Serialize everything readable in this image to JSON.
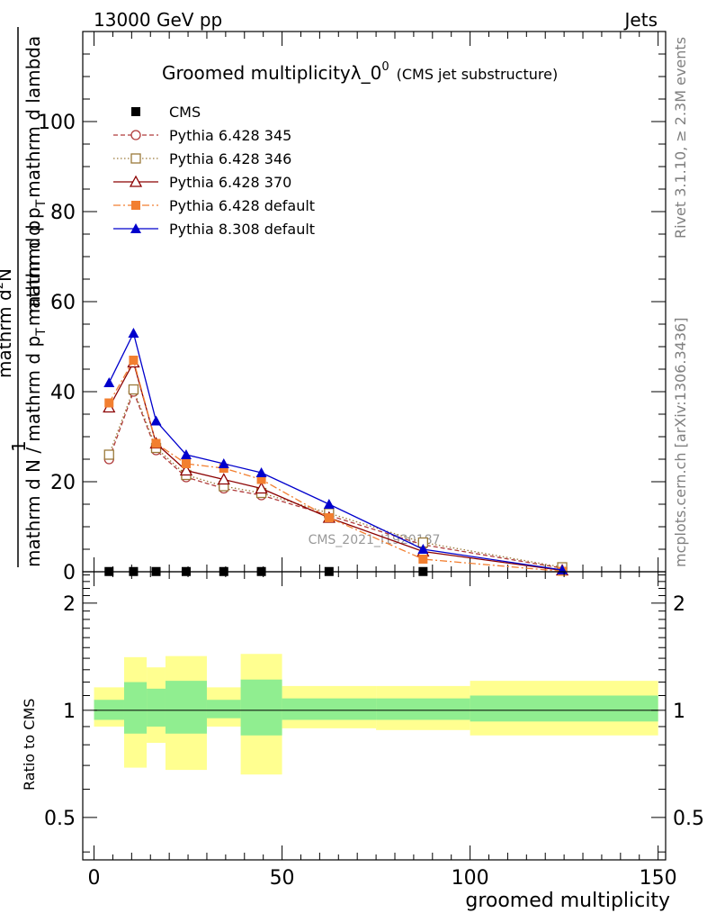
{
  "header": {
    "energy_label": "13000 GeV pp",
    "category_label": "Jets",
    "title_main": "Groomed multiplicityλ_0",
    "title_sup": "0",
    "title_sub": "(CMS jet substructure)",
    "watermark": "CMS_2021_I1920187",
    "side_top": "Rivet 3.1.10, ≥ 2.3M events",
    "side_bottom": "mcplots.cern.ch [arXiv:1306.3436]"
  },
  "chart_data": [
    {
      "type": "line",
      "panel": "main",
      "xlabel": "groomed multiplicity",
      "ylabel": {
        "prefix": "1",
        "denominator": "mathrm d N / mathrm d p",
        "denominator_sub": "T",
        "denominator_rest": "mathrm d p",
        "numerator": "mathrm d",
        "numerator_sup": "2",
        "numerator_rest": "N",
        "numerator2": "mathrm d p",
        "numerator2_sub": "T",
        "numerator2_rest": "mathrm d lambda"
      },
      "xlim": [
        -3,
        152
      ],
      "ylim": [
        0,
        120
      ],
      "xticks": [
        0,
        50,
        100,
        150
      ],
      "yticks": [
        20,
        40,
        60,
        80,
        100
      ],
      "ytick_labels": [
        "20",
        "40",
        "60",
        "80",
        "100"
      ],
      "y_zero_label": "0",
      "legend_position": "top-left",
      "series": [
        {
          "name": "CMS",
          "color": "#000000",
          "marker": "square-filled",
          "line": "none",
          "x": [
            4,
            10.5,
            16.5,
            24.5,
            34.5,
            44.5,
            62.5,
            87.5
          ],
          "y": [
            0.05,
            0.05,
            0.05,
            0.05,
            0.05,
            0.05,
            0.05,
            0.05
          ]
        },
        {
          "name": "Pythia 6.428 345",
          "color": "#b03a3a",
          "marker": "circle-open",
          "line": "dashed",
          "x": [
            4,
            10.5,
            16.5,
            24.5,
            34.5,
            44.5,
            62.5,
            87.5,
            124.5
          ],
          "y": [
            25,
            40,
            27,
            21,
            18.5,
            17,
            12.5,
            6,
            0.8
          ]
        },
        {
          "name": "Pythia 6.428 346",
          "color": "#9a7a3a",
          "marker": "square-open",
          "line": "dotted",
          "x": [
            4,
            10.5,
            16.5,
            24.5,
            34.5,
            44.5,
            62.5,
            87.5,
            124.5
          ],
          "y": [
            26,
            40.5,
            27.5,
            21.5,
            19,
            17.5,
            13,
            6.5,
            1
          ]
        },
        {
          "name": "Pythia 6.428 370",
          "color": "#8b0000",
          "marker": "triangle-open",
          "line": "solid",
          "x": [
            4,
            10.5,
            16.5,
            24.5,
            34.5,
            44.5,
            62.5,
            87.5,
            124.5
          ],
          "y": [
            36.5,
            46.5,
            28.5,
            22.5,
            20.5,
            18.5,
            12,
            4.5,
            0.3
          ]
        },
        {
          "name": "Pythia 6.428 default",
          "color": "#f27f30",
          "marker": "square-filled",
          "line": "dashdot",
          "x": [
            4,
            10.5,
            16.5,
            24.5,
            34.5,
            44.5,
            62.5,
            87.5,
            124.5
          ],
          "y": [
            37.5,
            47,
            28.5,
            24,
            23,
            20.5,
            12,
            2.8,
            0.1
          ]
        },
        {
          "name": "Pythia 8.308 default",
          "color": "#0000cc",
          "marker": "triangle-filled",
          "line": "solid",
          "x": [
            4,
            10.5,
            16.5,
            24.5,
            34.5,
            44.5,
            62.5,
            87.5,
            124.5
          ],
          "y": [
            42,
            53,
            33.5,
            26,
            24,
            22,
            15,
            5,
            0.4
          ]
        }
      ]
    },
    {
      "type": "area",
      "panel": "ratio",
      "ylabel": "Ratio to CMS",
      "xlabel": "groomed multiplicity",
      "xlim": [
        -3,
        152
      ],
      "ylim": [
        0.38,
        2.45
      ],
      "scale": "log",
      "yticks": [
        0.5,
        1,
        2
      ],
      "ytick_labels": [
        "0.5",
        "1",
        "2"
      ],
      "xticks": [
        0,
        50,
        100,
        150
      ],
      "xtick_labels": [
        "0",
        "50",
        "100",
        "150"
      ],
      "reference_line": 1,
      "band_colors": {
        "inner": "#90ee90",
        "outer": "#ffff90"
      },
      "bins": [
        {
          "x0": 0,
          "x1": 8,
          "inner": [
            0.94,
            1.07
          ],
          "outer": [
            0.9,
            1.16
          ]
        },
        {
          "x0": 8,
          "x1": 14,
          "inner": [
            0.86,
            1.2
          ],
          "outer": [
            0.69,
            1.41
          ]
        },
        {
          "x0": 14,
          "x1": 19,
          "inner": [
            0.9,
            1.15
          ],
          "outer": [
            0.81,
            1.32
          ]
        },
        {
          "x0": 19,
          "x1": 30,
          "inner": [
            0.86,
            1.21
          ],
          "outer": [
            0.68,
            1.42
          ]
        },
        {
          "x0": 30,
          "x1": 39,
          "inner": [
            0.95,
            1.07
          ],
          "outer": [
            0.9,
            1.16
          ]
        },
        {
          "x0": 39,
          "x1": 50,
          "inner": [
            0.85,
            1.22
          ],
          "outer": [
            0.66,
            1.44
          ]
        },
        {
          "x0": 50,
          "x1": 75,
          "inner": [
            0.94,
            1.08
          ],
          "outer": [
            0.89,
            1.17
          ]
        },
        {
          "x0": 75,
          "x1": 100,
          "inner": [
            0.94,
            1.08
          ],
          "outer": [
            0.88,
            1.17
          ]
        },
        {
          "x0": 100,
          "x1": 150,
          "inner": [
            0.93,
            1.1
          ],
          "outer": [
            0.85,
            1.21
          ]
        }
      ]
    }
  ]
}
